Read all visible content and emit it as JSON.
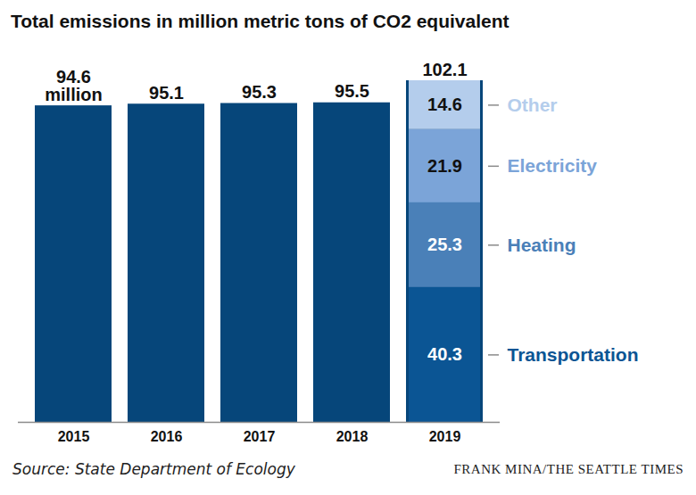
{
  "chart_data": {
    "type": "bar",
    "title": "Total emissions in million metric tons of CO2 equivalent",
    "source": "Source: State Department of Ecology",
    "credit": "FRANK MINA/THE SEATTLE TIMES",
    "categories": [
      "2015",
      "2016",
      "2017",
      "2018",
      "2019"
    ],
    "values": [
      94.6,
      95.1,
      95.3,
      95.5,
      102.1
    ],
    "value_labels": [
      "94.6 million",
      "95.1",
      "95.3",
      "95.5",
      "102.1"
    ],
    "color": "#06467a",
    "series": [
      {
        "name": "Transportation",
        "color": "#0b5594",
        "values": [
          null,
          null,
          null,
          null,
          40.3
        ]
      },
      {
        "name": "Heating",
        "color": "#4a80b8",
        "values": [
          null,
          null,
          null,
          null,
          25.3
        ]
      },
      {
        "name": "Electricity",
        "color": "#7ba4d8",
        "values": [
          null,
          null,
          null,
          null,
          21.9
        ]
      },
      {
        "name": "Other",
        "color": "#b4cdec",
        "values": [
          null,
          null,
          null,
          null,
          14.6
        ]
      }
    ],
    "stacked": true,
    "data_labels": true,
    "ylim": [
      0,
      102.1
    ],
    "yticks": [],
    "tick_labels": "x",
    "grid": false
  }
}
